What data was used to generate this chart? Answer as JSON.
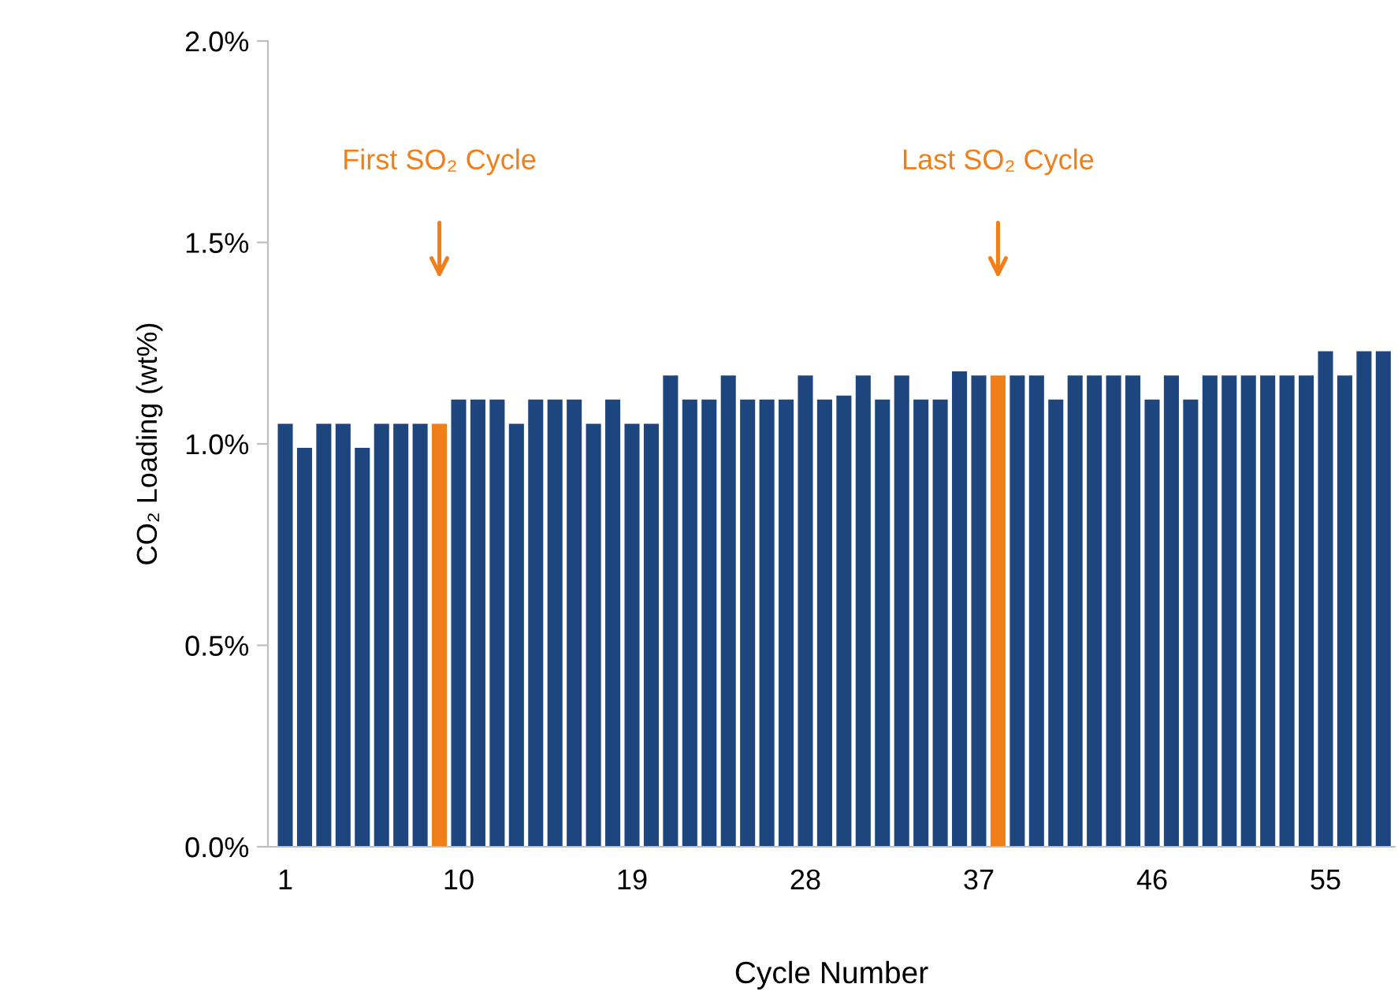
{
  "chart_data": {
    "type": "bar",
    "ylabel": "CO₂ Loading (wt%)",
    "xlabel": "Cycle Number",
    "categories": [
      "1",
      null,
      null,
      null,
      null,
      null,
      null,
      null,
      null,
      "10",
      null,
      null,
      null,
      null,
      null,
      null,
      null,
      null,
      "19",
      null,
      null,
      null,
      null,
      null,
      null,
      null,
      null,
      "28",
      null,
      null,
      null,
      null,
      null,
      null,
      null,
      null,
      "37",
      null,
      null,
      null,
      null,
      null,
      null,
      null,
      null,
      "46",
      null,
      null,
      null,
      null,
      null,
      null,
      null,
      null,
      "55",
      null,
      null,
      null
    ],
    "values": [
      1.05,
      0.99,
      1.05,
      1.05,
      0.99,
      1.05,
      1.05,
      1.05,
      1.05,
      1.11,
      1.11,
      1.11,
      1.05,
      1.11,
      1.11,
      1.11,
      1.05,
      1.11,
      1.05,
      1.05,
      1.17,
      1.11,
      1.11,
      1.17,
      1.11,
      1.11,
      1.11,
      1.17,
      1.11,
      1.12,
      1.17,
      1.11,
      1.17,
      1.11,
      1.11,
      1.18,
      1.17,
      1.17,
      1.17,
      1.17,
      1.11,
      1.17,
      1.17,
      1.17,
      1.17,
      1.11,
      1.17,
      1.11,
      1.17,
      1.17,
      1.17,
      1.17,
      1.17,
      1.17,
      1.23,
      1.17,
      1.23,
      1.23
    ],
    "colors": [
      "#1d467f",
      "#1d467f",
      "#1d467f",
      "#1d467f",
      "#1d467f",
      "#1d467f",
      "#1d467f",
      "#1d467f",
      "#f07f1a",
      "#1d467f",
      "#1d467f",
      "#1d467f",
      "#1d467f",
      "#1d467f",
      "#1d467f",
      "#1d467f",
      "#1d467f",
      "#1d467f",
      "#1d467f",
      "#1d467f",
      "#1d467f",
      "#1d467f",
      "#1d467f",
      "#1d467f",
      "#1d467f",
      "#1d467f",
      "#1d467f",
      "#1d467f",
      "#1d467f",
      "#1d467f",
      "#1d467f",
      "#1d467f",
      "#1d467f",
      "#1d467f",
      "#1d467f",
      "#1d467f",
      "#1d467f",
      "#f07f1a",
      "#1d467f",
      "#1d467f",
      "#1d467f",
      "#1d467f",
      "#1d467f",
      "#1d467f",
      "#1d467f",
      "#1d467f",
      "#1d467f",
      "#1d467f",
      "#1d467f",
      "#1d467f",
      "#1d467f",
      "#1d467f",
      "#1d467f",
      "#1d467f",
      "#1d467f",
      "#1d467f",
      "#1d467f",
      "#1d467f"
    ],
    "ylim": [
      0,
      2.0
    ],
    "yticks": [
      {
        "value": 0,
        "label": "0.0%"
      },
      {
        "value": 0.5,
        "label": "0.5%"
      },
      {
        "value": 1.0,
        "label": "1.0%"
      },
      {
        "value": 1.5,
        "label": "1.5%"
      },
      {
        "value": 2.0,
        "label": "2.0%"
      }
    ],
    "annotations": [
      "First SO₂ Cycle",
      "Last SO₂ Cycle"
    ],
    "grid": false,
    "legend": false
  }
}
